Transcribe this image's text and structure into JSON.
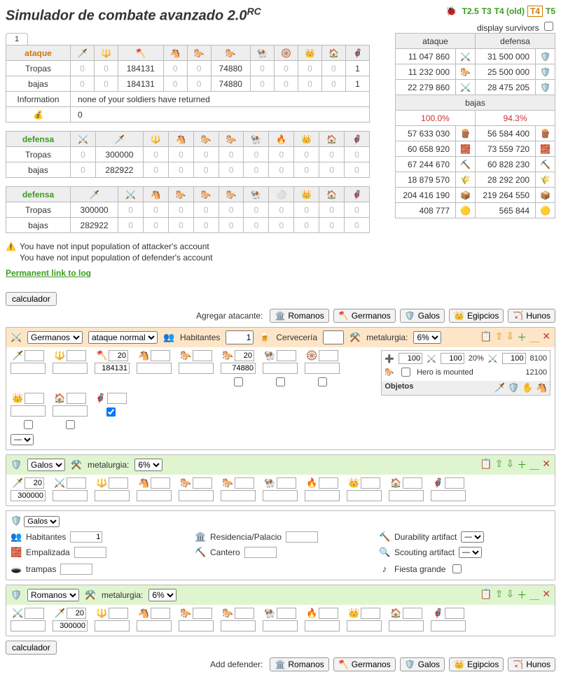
{
  "title": "Simulador de combate avanzado 2.0",
  "title_sup": "RC",
  "version_links": [
    {
      "label": "T2.5",
      "cls": "green"
    },
    {
      "label": "T3",
      "cls": "green"
    },
    {
      "label": "T4 (old)",
      "cls": "green"
    },
    {
      "label": "T4",
      "cls": "current"
    },
    {
      "label": "T5",
      "cls": "green"
    }
  ],
  "survivors_label": "display survivors",
  "tab_label": "1",
  "attack": {
    "header": "ataque",
    "row_troops_lbl": "Tropas",
    "row_losses_lbl": "bajas",
    "info_lbl": "Information",
    "info_txt": "none of your soldiers have returned",
    "res_icon": "💰",
    "res_val": "0",
    "cols": 11,
    "troops": [
      "0",
      "0",
      "184131",
      "0",
      "0",
      "74880",
      "0",
      "0",
      "0",
      "0",
      "1"
    ],
    "losses": [
      "0",
      "0",
      "184131",
      "0",
      "0",
      "74880",
      "0",
      "0",
      "0",
      "0",
      "1"
    ],
    "icons": [
      "🗡️",
      "🔱",
      "🪓",
      "🐴",
      "🐎",
      "🐎",
      "🐏",
      "🛞",
      "👑",
      "🏠",
      "🦸"
    ]
  },
  "defense1": {
    "header": "defensa",
    "row_troops_lbl": "Tropas",
    "row_losses_lbl": "bajas",
    "cols": 11,
    "icons": [
      "⚔️",
      "🗡️",
      "🔱",
      "🐴",
      "🐎",
      "🐎",
      "🐏",
      "🔥",
      "👑",
      "🏠",
      "🦸"
    ],
    "troops": [
      "0",
      "300000",
      "0",
      "0",
      "0",
      "0",
      "0",
      "0",
      "0",
      "0",
      "0"
    ],
    "losses": [
      "0",
      "282922",
      "0",
      "0",
      "0",
      "0",
      "0",
      "0",
      "0",
      "0",
      "0"
    ]
  },
  "defense2": {
    "header": "defensa",
    "row_troops_lbl": "Tropas",
    "row_losses_lbl": "bajas",
    "cols": 11,
    "icons": [
      "🗡️",
      "⚔️",
      "🐴",
      "🐎",
      "🐎",
      "🐎",
      "🐏",
      "⚪",
      "👑",
      "🏠",
      "🦸"
    ],
    "troops": [
      "300000",
      "0",
      "0",
      "0",
      "0",
      "0",
      "0",
      "0",
      "0",
      "0",
      "0"
    ],
    "losses": [
      "282922",
      "0",
      "0",
      "0",
      "0",
      "0",
      "0",
      "0",
      "0",
      "0",
      "0"
    ]
  },
  "warnings": [
    "You have not input population of attacker's account",
    "You have not input population of defender's account"
  ],
  "permalink": "Permanent link to log",
  "summary": {
    "hdr_atk": "ataque",
    "hdr_def": "defensa",
    "top": [
      {
        "a": "11 047 860",
        "ai": "⚔️",
        "d": "31 500 000",
        "di": "🛡️"
      },
      {
        "a": "11 232 000",
        "ai": "🐎",
        "d": "25 500 000",
        "di": "🛡️"
      },
      {
        "a": "22 279 860",
        "ai": "⚔️",
        "d": "28 475 205",
        "di": "🛡️"
      }
    ],
    "losses_hdr": "bajas",
    "pct_a": "100.0%",
    "pct_d": "94.3%",
    "res": [
      {
        "a": "57 633 030",
        "ai": "🪵",
        "d": "56 584 400",
        "di": "🪵"
      },
      {
        "a": "60 658 920",
        "ai": "🧱",
        "d": "73 559 720",
        "di": "🧱"
      },
      {
        "a": "67 244 670",
        "ai": "⛏️",
        "d": "60 828 230",
        "di": "⛏️"
      },
      {
        "a": "18 879 570",
        "ai": "🌾",
        "d": "28 292 200",
        "di": "🌾"
      },
      {
        "a": "204 416 190",
        "ai": "📦",
        "d": "219 264 550",
        "di": "📦"
      },
      {
        "a": "408 777",
        "ai": "🟡",
        "d": "565 844",
        "di": "🟡"
      }
    ]
  },
  "calc_btn": "calculador",
  "add_attacker_lbl": "Agregar atacante:",
  "add_defender_lbl": "Add defender:",
  "tribes": [
    {
      "label": "Romanos",
      "icon": "🏛️"
    },
    {
      "label": "Germanos",
      "icon": "🪓"
    },
    {
      "label": "Galos",
      "icon": "🛡️"
    },
    {
      "label": "Egipcios",
      "icon": "👑"
    },
    {
      "label": "Hunos",
      "icon": "🏹"
    }
  ],
  "panel_att": {
    "tribe": "Germanos",
    "atk_type": "ataque normal",
    "pop_lbl": "Habitantes",
    "pop_val": "1",
    "brew_lbl": "Cervecería",
    "brew_val": "",
    "metal_lbl": "metalurgia:",
    "metal_opts": [
      "6%"
    ],
    "icons": [
      "🗡️",
      "🔱",
      "🪓",
      "🐴",
      "🐎",
      "🐎",
      "🐏",
      "🛞",
      "👑",
      "🏠",
      "🦸"
    ],
    "lvls": [
      "",
      "",
      "20",
      "",
      "",
      "20",
      "",
      "",
      "",
      "",
      ""
    ],
    "qtys": [
      "",
      "",
      "184131",
      "",
      "",
      "74880",
      "",
      "",
      "",
      "",
      ""
    ],
    "chk": [
      false,
      false,
      false,
      false,
      false,
      true
    ],
    "hero": {
      "hp_lbl": "❤️",
      "hp": "100",
      "off_lbl": "⚔️",
      "off": "100",
      "off_pct": "20%",
      "str_lbl": "⚔️",
      "str": "100",
      "str_total": "8100",
      "mount_lbl": "Hero is mounted",
      "mount": false,
      "mount_total": "12100",
      "items_lbl": "Objetos",
      "item_icons": [
        "🗡️",
        "🛡️",
        "✋",
        "🐴"
      ]
    }
  },
  "panel_def1": {
    "tribe": "Galos",
    "metal_lbl": "metalurgia:",
    "metal_opts": [
      "6%"
    ],
    "icons": [
      "🗡️",
      "⚔️",
      "🔱",
      "🐴",
      "🐎",
      "🐎",
      "🐏",
      "🔥",
      "👑",
      "🏠",
      "🦸"
    ],
    "lvls": [
      "20",
      "",
      "",
      "",
      "",
      "",
      "",
      "",
      "",
      "",
      ""
    ],
    "qtys": [
      "300000",
      "",
      "",
      "",
      "",
      "",
      "",
      "",
      "",
      "",
      ""
    ]
  },
  "village": {
    "tribe": "Galos",
    "pop_lbl": "Habitantes",
    "pop_val": "1",
    "pal_lbl": "Residencia/Palacio",
    "pal_val": "",
    "dur_lbl": "Durability artifact",
    "dur_val": "—",
    "wall_lbl": "Empalizada",
    "wall_val": "",
    "mason_lbl": "Cantero",
    "mason_val": "",
    "scout_lbl": "Scouting artifact",
    "scout_val": "—",
    "trap_lbl": "trampas",
    "trap_val": "",
    "party_lbl": "Fiesta grande",
    "party_val": false
  },
  "panel_def2": {
    "tribe": "Romanos",
    "metal_lbl": "metalurgia:",
    "metal_opts": [
      "6%"
    ],
    "icons": [
      "⚔️",
      "🗡️",
      "🔱",
      "🐴",
      "🐎",
      "🐎",
      "🐏",
      "🔥",
      "👑",
      "🏠",
      "🦸"
    ],
    "lvls": [
      "",
      "20",
      "",
      "",
      "",
      "",
      "",
      "",
      "",
      "",
      ""
    ],
    "qtys": [
      "",
      "300000",
      "",
      "",
      "",
      "",
      "",
      "",
      "",
      "",
      ""
    ]
  }
}
